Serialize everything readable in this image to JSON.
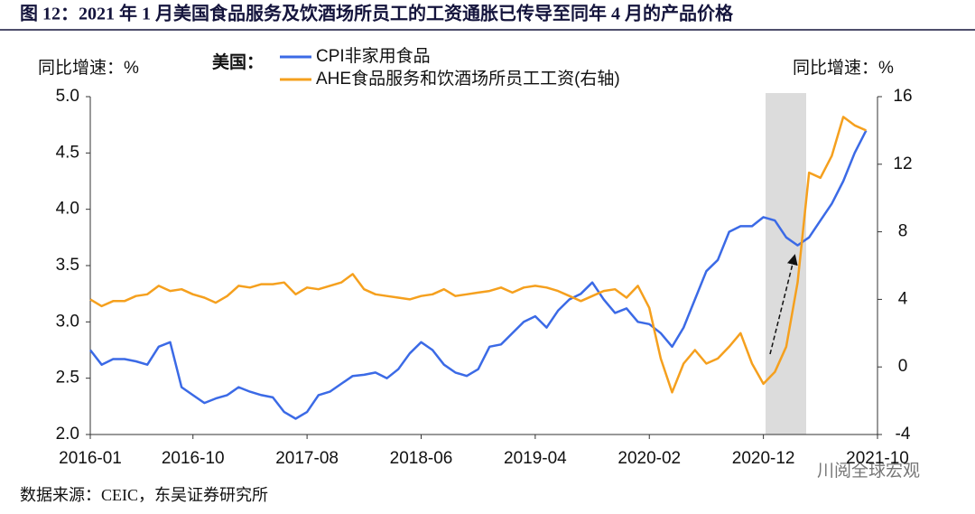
{
  "chart_data": {
    "type": "line",
    "title": "图 12：2021 年 1 月美国食品服务及饮酒场所员工的工资通胀已传导至同年 4 月的产品价格",
    "y_label": "同比增速：%",
    "y2_label": "同比增速：%",
    "legend_title": "美国：",
    "source": "数据来源：CEIC，东吴证券研究所",
    "watermark": "川阅全球宏观",
    "categories": [
      "2016-01",
      null,
      null,
      null,
      null,
      null,
      null,
      null,
      null,
      "2016-10",
      null,
      null,
      null,
      null,
      null,
      null,
      null,
      null,
      null,
      "2017-08",
      null,
      null,
      null,
      null,
      null,
      null,
      null,
      null,
      null,
      "2018-06",
      null,
      null,
      null,
      null,
      null,
      null,
      null,
      null,
      null,
      "2019-04",
      null,
      null,
      null,
      null,
      null,
      null,
      null,
      null,
      null,
      "2020-02",
      null,
      null,
      null,
      null,
      null,
      null,
      null,
      null,
      null,
      "2020-12",
      null,
      null,
      null,
      null,
      null,
      null,
      null,
      null,
      null,
      "2021-10"
    ],
    "series": [
      {
        "name": "CPI非家用食品",
        "color": "#3b6ae6",
        "values": [
          2.75,
          2.62,
          2.67,
          2.67,
          2.65,
          2.62,
          2.78,
          2.82,
          2.42,
          2.35,
          2.28,
          2.32,
          2.35,
          2.42,
          2.38,
          2.35,
          2.33,
          2.2,
          2.14,
          2.2,
          2.35,
          2.38,
          2.45,
          2.52,
          2.53,
          2.55,
          2.5,
          2.58,
          2.72,
          2.82,
          2.75,
          2.62,
          2.55,
          2.52,
          2.58,
          2.78,
          2.8,
          2.9,
          3.0,
          3.05,
          2.95,
          3.1,
          3.2,
          3.25,
          3.35,
          3.2,
          3.08,
          3.12,
          3.0,
          2.98,
          2.9,
          2.78,
          2.95,
          3.2,
          3.45,
          3.55,
          3.8,
          3.85,
          3.85,
          3.93,
          3.9,
          3.75,
          3.68,
          3.75,
          3.9,
          4.05,
          4.25,
          4.5,
          4.7,
          null
        ]
      },
      {
        "name": "AHE食品服务和饮酒场所员工工资(右轴)",
        "color": "#f5a01e",
        "axis": "y2",
        "values": [
          4.0,
          3.6,
          3.9,
          3.9,
          4.2,
          4.3,
          4.8,
          4.5,
          4.6,
          4.3,
          4.1,
          3.8,
          4.2,
          4.8,
          4.7,
          4.9,
          4.9,
          5.0,
          4.3,
          4.7,
          4.6,
          4.8,
          5.0,
          5.5,
          4.6,
          4.3,
          4.2,
          4.1,
          4.0,
          4.2,
          4.3,
          4.6,
          4.2,
          4.3,
          4.4,
          4.5,
          4.7,
          4.4,
          4.7,
          4.8,
          4.7,
          4.5,
          4.2,
          3.9,
          4.2,
          4.5,
          4.6,
          4.1,
          4.8,
          3.5,
          0.5,
          -1.5,
          0.2,
          1.0,
          0.2,
          0.5,
          1.2,
          2.0,
          0.2,
          -1.0,
          -0.3,
          1.2,
          5.0,
          11.5,
          11.2,
          12.5,
          14.8,
          14.3,
          14.0,
          null
        ]
      }
    ],
    "ylim": [
      2,
      5
    ],
    "yticks": [
      {
        "value": 2,
        "label": "2.0"
      },
      {
        "value": 2.5,
        "label": "2.5"
      },
      {
        "value": 3,
        "label": "3.0"
      },
      {
        "value": 3.5,
        "label": "3.5"
      },
      {
        "value": 4,
        "label": "4.0"
      },
      {
        "value": 4.5,
        "label": "4.5"
      },
      {
        "value": 5,
        "label": "5.0"
      }
    ],
    "y2lim": [
      -4,
      16
    ],
    "y2ticks": [
      -4,
      0,
      4,
      8,
      12,
      16
    ],
    "grid": false
  }
}
